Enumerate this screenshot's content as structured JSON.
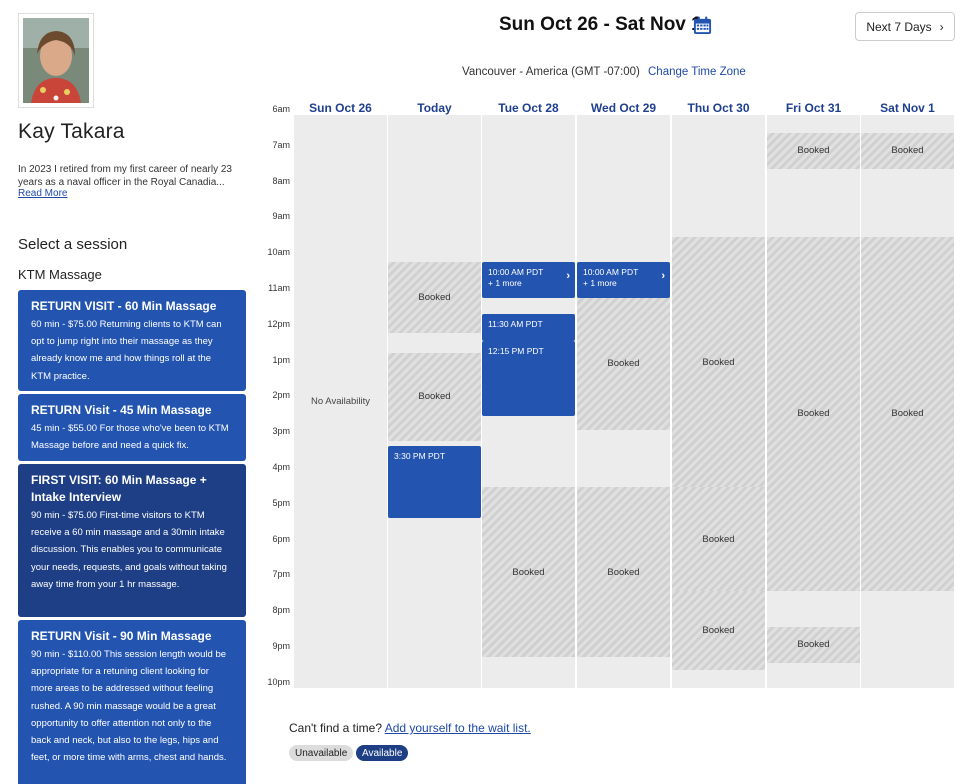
{
  "provider": {
    "name": "Kay Takara",
    "bio": "In 2023 I retired from my first career of nearly 23 years as a naval officer in the Royal Canadia...",
    "read_more": "Read More"
  },
  "sidebar": {
    "select_heading": "Select a session",
    "category": "KTM Massage",
    "sessions": [
      {
        "title": "RETURN VISIT - 60 Min Massage",
        "desc": "60 min - $75.00 Returning clients to KTM can opt to jump right into their massage as they already know me and how things roll at the KTM practice."
      },
      {
        "title": "RETURN Visit - 45 Min Massage",
        "desc": "45 min - $55.00 For those who've been to KTM Massage before and need a quick fix."
      },
      {
        "title": "FIRST VISIT: 60 Min Massage + Intake Interview",
        "desc": "90 min - $75.00 First-time visitors to KTM receive a 60 min massage and a 30min intake discussion. This enables you to communicate your needs, requests, and goals without taking away time from your 1 hr massage."
      },
      {
        "title": "RETURN Visit - 90 Min Massage",
        "desc": "90 min - $110.00 This session length would be appropriate for a retuning client looking for more areas to be addressed without feeling rushed. A 90 min massage would be a great opportunity to offer attention not only to the back and neck, but also to the legs, hips and feet, or more time with arms, chest and hands."
      }
    ]
  },
  "header": {
    "date_range": "Sun Oct 26 - Sat Nov 1",
    "next_label": "Next 7 Days",
    "timezone": "Vancouver - America (GMT -07:00)",
    "change_tz": "Change Time Zone"
  },
  "calendar": {
    "hours": [
      "6am",
      "7am",
      "8am",
      "9am",
      "10am",
      "11am",
      "12pm",
      "1pm",
      "2pm",
      "3pm",
      "4pm",
      "5pm",
      "6pm",
      "7pm",
      "8pm",
      "9pm",
      "10pm"
    ],
    "days": [
      "Sun Oct 26",
      "Today",
      "Tue Oct 28",
      "Wed Oct 29",
      "Thu Oct 30",
      "Fri Oct 31",
      "Sat Nov 1"
    ],
    "no_availability": "No Availability",
    "booked_label": "Booked",
    "slots": {
      "today_330": "3:30 PM PDT",
      "tue_1000": "10:00 AM PDT",
      "tue_1000_more": "+ 1 more",
      "tue_1130": "11:30 AM PDT",
      "tue_1215": "12:15 PM PDT",
      "wed_1000": "10:00 AM PDT",
      "wed_1000_more": "+ 1 more"
    }
  },
  "footer": {
    "cant_find": "Can't find a time?",
    "wait_list": "Add yourself to the wait list.",
    "legend_unavailable": "Unavailable",
    "legend_available": "Available"
  },
  "colors": {
    "accent": "#2354b0",
    "accent_dark": "#1e3f85",
    "link": "#1f4aa8"
  },
  "icons": {
    "calendar": "calendar-icon",
    "next": "chevron-right-icon",
    "slot_more": "chevron-right-icon"
  }
}
